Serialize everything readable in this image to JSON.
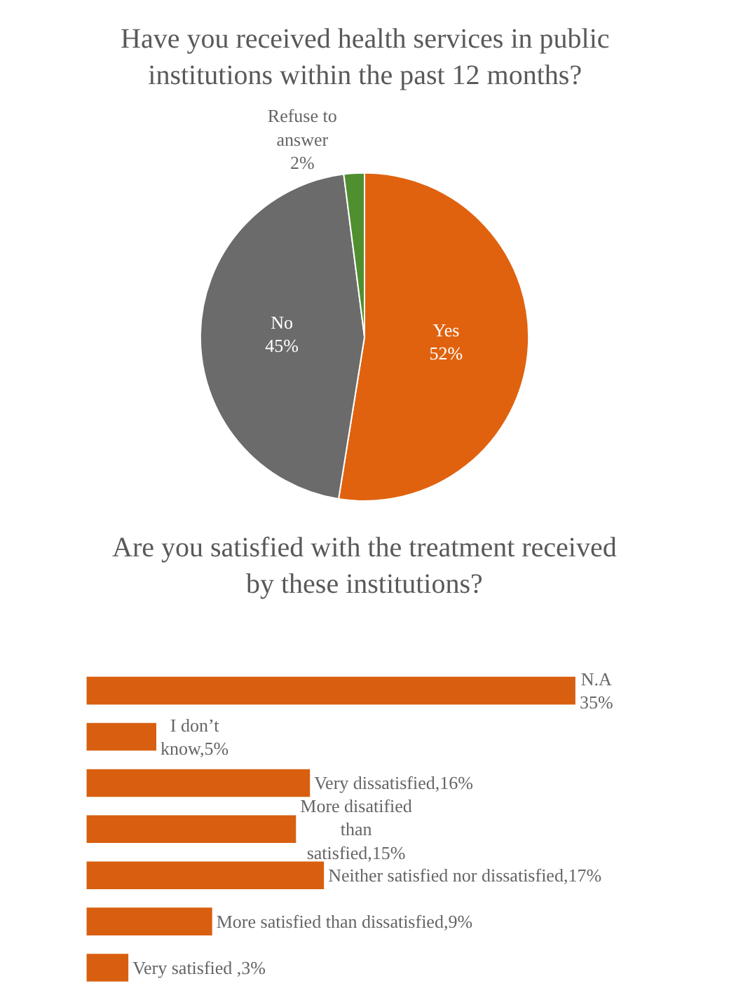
{
  "chart_data": [
    {
      "type": "pie",
      "title": "Have you received health services in public\ninstitutions within the past 12 months?",
      "categories": [
        "Yes",
        "No",
        "Refuse to\nanswer"
      ],
      "values": [
        52,
        45,
        2
      ],
      "colors": [
        "#e0620f",
        "#6b6b6b",
        "#4f8f2f"
      ],
      "value_labels": [
        "52%",
        "45%",
        "2%"
      ]
    },
    {
      "type": "bar",
      "orientation": "horizontal",
      "title": "Are you satisfied with the treatment received\nby these institutions?",
      "categories": [
        null,
        null,
        null,
        null,
        null,
        null,
        null
      ],
      "values": [
        35,
        5,
        16,
        15,
        17,
        9,
        3
      ],
      "color": "#d85f10",
      "tick_labels": false,
      "value_labels": [
        "N.A\n35%",
        "I don’t\nknow,5%",
        "Very dissatisfied,16%",
        "More disatified\nthan\nsatisfied,15%",
        "Neither satisfied nor dissatisfied,17%",
        "More satisfied than dissatisfied,9%",
        "Very satisfied ,3%"
      ]
    }
  ]
}
